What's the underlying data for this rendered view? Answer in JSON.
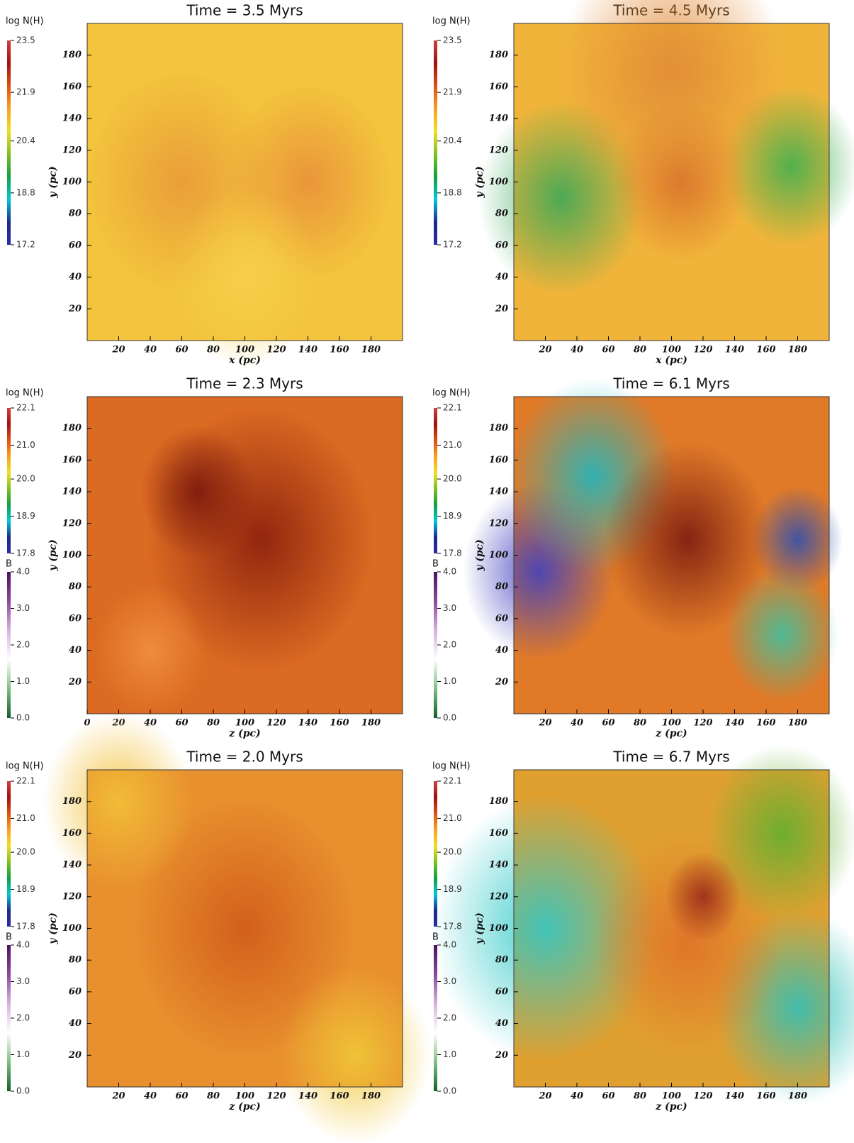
{
  "chart_data": [
    {
      "type": "heatmap",
      "title": "Time = 3.5 Myrs",
      "xlabel": "x  (pc)",
      "ylabel": "y  (pc)",
      "xlim": [
        0,
        200
      ],
      "ylim": [
        0,
        200
      ],
      "xticks": [
        20,
        40,
        60,
        80,
        100,
        120,
        140,
        160,
        180
      ],
      "yticks": [
        20,
        40,
        60,
        80,
        100,
        120,
        140,
        160,
        180
      ],
      "colorbars": [
        {
          "label": "log N(H)",
          "lim": [
            17.2,
            23.5
          ],
          "ticks": [
            17.2,
            18.8,
            20.4,
            21.9,
            23.5
          ]
        }
      ]
    },
    {
      "type": "heatmap",
      "title": "Time = 4.5 Myrs",
      "xlabel": "x  (pc)",
      "ylabel": "y  (pc)",
      "xlim": [
        0,
        200
      ],
      "ylim": [
        0,
        200
      ],
      "xticks": [
        20,
        40,
        60,
        80,
        100,
        120,
        140,
        160,
        180
      ],
      "yticks": [
        20,
        40,
        60,
        80,
        100,
        120,
        140,
        160,
        180
      ],
      "colorbars": [
        {
          "label": "log N(H)",
          "lim": [
            17.2,
            23.5
          ],
          "ticks": [
            17.2,
            18.8,
            20.4,
            21.9,
            23.5
          ]
        }
      ]
    },
    {
      "type": "heatmap",
      "title": "Time = 2.3 Myrs",
      "xlabel": "z  (pc)",
      "ylabel": "y  (pc)",
      "xlim": [
        0,
        200
      ],
      "ylim": [
        0,
        200
      ],
      "xticks": [
        0,
        20,
        40,
        60,
        80,
        100,
        120,
        140,
        160,
        180
      ],
      "yticks": [
        20,
        40,
        60,
        80,
        100,
        120,
        140,
        160,
        180
      ],
      "colorbars": [
        {
          "label": "log N(H)",
          "lim": [
            17.8,
            22.1
          ],
          "ticks": [
            17.8,
            18.9,
            {
              "value": 20,
              "label": "20.0"
            },
            {
              "value": 21,
              "label": "21.0"
            },
            22.1
          ]
        },
        {
          "label": "B",
          "lim": [
            0,
            4
          ],
          "ticks": [
            {
              "value": 0,
              "label": "0.0"
            },
            {
              "value": 1,
              "label": "1.0"
            },
            {
              "value": 2,
              "label": "2.0"
            },
            {
              "value": 3,
              "label": "3.0"
            },
            {
              "value": 4,
              "label": "4.0"
            }
          ]
        }
      ]
    },
    {
      "type": "heatmap",
      "title": "Time = 6.1 Myrs",
      "xlabel": "z  (pc)",
      "ylabel": "y  (pc)",
      "xlim": [
        0,
        200
      ],
      "ylim": [
        0,
        200
      ],
      "xticks": [
        20,
        40,
        60,
        80,
        100,
        120,
        140,
        160,
        180
      ],
      "yticks": [
        20,
        40,
        60,
        80,
        100,
        120,
        140,
        160,
        180
      ],
      "colorbars": [
        {
          "label": "log N(H)",
          "lim": [
            17.8,
            22.1
          ],
          "ticks": [
            17.8,
            18.9,
            {
              "value": 20,
              "label": "20.0"
            },
            {
              "value": 21,
              "label": "21.0"
            },
            22.1
          ]
        },
        {
          "label": "B",
          "lim": [
            0,
            4
          ],
          "ticks": [
            {
              "value": 0,
              "label": "0.0"
            },
            {
              "value": 1,
              "label": "1.0"
            },
            {
              "value": 2,
              "label": "2.0"
            },
            {
              "value": 3,
              "label": "3.0"
            },
            {
              "value": 4,
              "label": "4.0"
            }
          ]
        }
      ]
    },
    {
      "type": "heatmap",
      "title": "Time = 2.0 Myrs",
      "xlabel": "z  (pc)",
      "ylabel": "y  (pc)",
      "xlim": [
        0,
        200
      ],
      "ylim": [
        0,
        200
      ],
      "xticks": [
        20,
        40,
        60,
        80,
        100,
        120,
        140,
        160,
        180
      ],
      "yticks": [
        20,
        40,
        60,
        80,
        100,
        120,
        140,
        160,
        180
      ],
      "colorbars": [
        {
          "label": "log N(H)",
          "lim": [
            17.8,
            22.1
          ],
          "ticks": [
            17.8,
            18.9,
            {
              "value": 20,
              "label": "20.0"
            },
            {
              "value": 21,
              "label": "21.0"
            },
            22.1
          ]
        },
        {
          "label": "B",
          "lim": [
            0,
            4
          ],
          "ticks": [
            {
              "value": 0,
              "label": "0.0"
            },
            {
              "value": 1,
              "label": "1.0"
            },
            {
              "value": 2,
              "label": "2.0"
            },
            {
              "value": 3,
              "label": "3.0"
            },
            {
              "value": 4,
              "label": "4.0"
            }
          ]
        }
      ]
    },
    {
      "type": "heatmap",
      "title": "Time = 6.7 Myrs",
      "xlabel": "z  (pc)",
      "ylabel": "y  (pc)",
      "xlim": [
        0,
        200
      ],
      "ylim": [
        0,
        200
      ],
      "xticks": [
        20,
        40,
        60,
        80,
        100,
        120,
        140,
        160,
        180
      ],
      "yticks": [
        20,
        40,
        60,
        80,
        100,
        120,
        140,
        160,
        180
      ],
      "colorbars": [
        {
          "label": "log N(H)",
          "lim": [
            17.8,
            22.1
          ],
          "ticks": [
            17.8,
            18.9,
            {
              "value": 20,
              "label": "20.0"
            },
            {
              "value": 21,
              "label": "21.0"
            },
            22.1
          ]
        },
        {
          "label": "B",
          "lim": [
            0,
            4
          ],
          "ticks": [
            {
              "value": 0,
              "label": "0.0"
            },
            {
              "value": 1,
              "label": "1.0"
            },
            {
              "value": 2,
              "label": "2.0"
            },
            {
              "value": 3,
              "label": "3.0"
            },
            {
              "value": 4,
              "label": "4.0"
            }
          ]
        }
      ]
    }
  ]
}
